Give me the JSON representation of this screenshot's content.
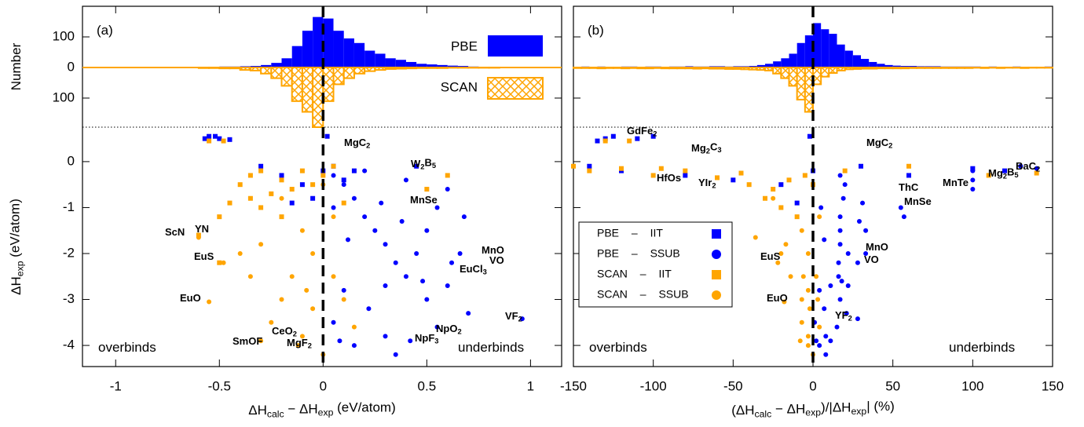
{
  "chart_data": [
    {
      "type": "histogram",
      "ylabel": [
        "Number"
      ],
      "sharex": 1,
      "vline": 0,
      "legend": "upper right",
      "bins": [
        -0.6,
        -0.55,
        -0.5,
        -0.45,
        -0.4,
        -0.35,
        -0.3,
        -0.25,
        -0.2,
        -0.15,
        -0.1,
        -0.05,
        0,
        0.05,
        0.1,
        0.15,
        0.2,
        0.25,
        0.3,
        0.35,
        0.4,
        0.45,
        0.5,
        0.55,
        0.6,
        0.65,
        0.7,
        0.75,
        0.8,
        0.85,
        0.9
      ],
      "series": [
        {
          "name": "PBE",
          "color": "#0000ff",
          "hatch": false,
          "values": [
            2,
            2,
            3,
            3,
            4,
            5,
            8,
            15,
            30,
            70,
            120,
            165,
            160,
            120,
            95,
            80,
            55,
            45,
            30,
            25,
            18,
            12,
            10,
            8,
            6,
            5,
            3,
            2,
            2,
            1
          ]
        },
        {
          "name": "SCAN",
          "color": "#ffa500",
          "hatch": true,
          "values": [
            -2,
            -2,
            -3,
            -3,
            -8,
            -10,
            -20,
            -35,
            -60,
            -110,
            -145,
            -195,
            -110,
            -55,
            -35,
            -20,
            -12,
            -8,
            -5,
            -4,
            -3,
            -2,
            -2,
            -2,
            -1,
            -1,
            -1,
            -1,
            -1,
            0
          ]
        }
      ],
      "ylim": [
        -195,
        200
      ],
      "yticks": [
        100,
        0,
        {
          "value": -100,
          "label": "100"
        }
      ],
      "annotations": [
        [
          "(a)"
        ]
      ]
    },
    {
      "type": "scatter",
      "xlabel": [
        "ΔH",
        "calc",
        " − ΔH",
        "exp",
        " (eV/atom)"
      ],
      "ylabel": [
        "ΔH",
        "exp",
        " (eV/atom)"
      ],
      "vline": 0,
      "xlim": [
        -1.16,
        1.15
      ],
      "xticks": [
        -1,
        -0.5,
        0,
        0.5,
        1
      ],
      "ylim": [
        -4.46,
        0.75
      ],
      "yticks": [
        0,
        -1,
        -2,
        -3,
        -4
      ],
      "series": [
        {
          "name": "PBE – IIT",
          "color": "#0000ff",
          "marker": "square",
          "x": [
            -0.57,
            -0.55,
            -0.52,
            -0.5,
            -0.45,
            -0.3,
            -0.2,
            -0.1,
            0.0,
            0.05,
            0.1,
            -0.05,
            0.15,
            0.45,
            -0.15,
            0.02
          ],
          "values": [
            0.5,
            0.55,
            0.55,
            0.5,
            0.48,
            -0.1,
            -0.3,
            -0.5,
            -0.2,
            -0.1,
            -0.4,
            -0.8,
            -0.2,
            -0.1,
            -0.9,
            0.55
          ]
        },
        {
          "name": "PBE – SSUB",
          "color": "#0000ff",
          "marker": "circle",
          "x": [
            0.05,
            0.1,
            0.15,
            0.2,
            0.25,
            0.3,
            0.35,
            0.4,
            0.3,
            0.45,
            0.5,
            0.55,
            0.6,
            0.68,
            0.22,
            0.3,
            0.35,
            0.5,
            0.42,
            0.7,
            0.96,
            0.66,
            0.62,
            0.55,
            0.1,
            0.05,
            0.2,
            0.12,
            0.38,
            0.28,
            0.48,
            0.05,
            0.08,
            0.15,
            0.6,
            0.4
          ],
          "values": [
            -0.3,
            -0.5,
            -0.8,
            -1.2,
            -1.5,
            -1.8,
            -2.2,
            -2.5,
            -2.7,
            -2.0,
            -1.5,
            -1.0,
            -0.6,
            -1.2,
            -3.2,
            -3.8,
            -4.2,
            -3.0,
            -3.9,
            -3.3,
            -3.42,
            -2.0,
            -2.2,
            -3.6,
            -2.8,
            -3.5,
            -0.2,
            -1.7,
            -1.3,
            -0.9,
            -2.6,
            -1.0,
            -3.9,
            -4.0,
            -2.7,
            -0.4
          ]
        },
        {
          "name": "SCAN – IIT",
          "color": "#ffa500",
          "marker": "square",
          "x": [
            -0.6,
            -0.5,
            -0.45,
            -0.4,
            -0.35,
            -0.3,
            -0.25,
            -0.2,
            -0.15,
            -0.1,
            -0.05,
            0.0,
            0.05,
            -0.3,
            -0.55,
            -0.48,
            -0.5,
            0.5,
            0.6,
            -0.35,
            0.1,
            -0.2
          ],
          "values": [
            -1.6,
            -1.2,
            -0.9,
            -0.5,
            -0.3,
            -1.0,
            -0.7,
            -0.4,
            -0.6,
            -0.2,
            -0.5,
            -0.3,
            -0.1,
            -0.2,
            0.45,
            0.45,
            -2.2,
            -0.6,
            -0.3,
            -0.8,
            -0.9,
            -1.2
          ]
        },
        {
          "name": "SCAN – SSUB",
          "color": "#ffa500",
          "marker": "circle",
          "x": [
            -0.1,
            -0.05,
            -0.15,
            -0.2,
            -0.25,
            -0.3,
            -0.05,
            0.0,
            -0.1,
            0.05,
            0.1,
            -0.3,
            -0.4,
            -0.35,
            -0.55,
            -0.48,
            -0.6,
            0.05,
            -0.2,
            0.0,
            -0.12,
            0.15,
            -0.08
          ],
          "values": [
            -1.5,
            -2.0,
            -2.5,
            -3.0,
            -3.5,
            -3.9,
            -3.2,
            -4.2,
            -3.8,
            -2.5,
            -3.0,
            -1.8,
            -2.0,
            -2.5,
            -3.05,
            -2.2,
            -1.65,
            -1.2,
            -0.8,
            -0.5,
            -4.0,
            -3.6,
            -2.8
          ]
        }
      ],
      "annotations": [
        [
          "MgC",
          "2"
        ],
        [
          "W",
          "2",
          "B",
          "5"
        ],
        [
          "MnSe"
        ],
        [
          "ScN"
        ],
        [
          "YN"
        ],
        [
          "EuS"
        ],
        [
          "MnO"
        ],
        [
          "VO"
        ],
        [
          "EuCl",
          "3"
        ],
        [
          "EuO"
        ],
        [
          "VF",
          "2"
        ],
        [
          "NpO",
          "2"
        ],
        [
          "NpF",
          "3"
        ],
        [
          "CeO",
          "2"
        ],
        [
          "SmOF"
        ],
        [
          "MgF",
          "2"
        ],
        [
          "overbinds"
        ],
        [
          "underbinds"
        ]
      ]
    },
    {
      "type": "histogram",
      "sharex": 3,
      "sharey": 0,
      "vline": 0,
      "bins": [
        -150,
        -145,
        -140,
        -135,
        -130,
        -125,
        -120,
        -115,
        -110,
        -105,
        -100,
        -95,
        -90,
        -85,
        -80,
        -75,
        -70,
        -65,
        -60,
        -55,
        -50,
        -45,
        -40,
        -35,
        -30,
        -25,
        -20,
        -15,
        -10,
        -5,
        0,
        5,
        10,
        15,
        20,
        25,
        30,
        35,
        40,
        45,
        50,
        55,
        60,
        65,
        70,
        75,
        80,
        85,
        90,
        95,
        100,
        105,
        110,
        115,
        120,
        125,
        130,
        135,
        140,
        145,
        150
      ],
      "series": [
        {
          "name": "PBE",
          "color": "#0000ff",
          "hatch": false,
          "values": [
            2,
            3,
            2,
            3,
            2,
            2,
            3,
            3,
            2,
            3,
            3,
            2,
            3,
            3,
            4,
            3,
            3,
            4,
            4,
            3,
            4,
            4,
            5,
            8,
            12,
            20,
            30,
            45,
            80,
            105,
            145,
            125,
            110,
            75,
            55,
            40,
            28,
            18,
            12,
            8,
            6,
            5,
            5,
            4,
            4,
            4,
            3,
            3,
            3,
            3,
            3,
            2,
            3,
            2,
            2,
            3,
            2,
            2,
            2,
            3
          ]
        },
        {
          "name": "SCAN",
          "color": "#ffa500",
          "hatch": true,
          "values": [
            -2,
            -2,
            -2,
            -3,
            -2,
            -2,
            -3,
            -2,
            -3,
            -3,
            -2,
            -3,
            -3,
            -3,
            -3,
            -4,
            -3,
            -4,
            -4,
            -5,
            -5,
            -6,
            -7,
            -8,
            -10,
            -20,
            -35,
            -60,
            -105,
            -145,
            -55,
            -30,
            -18,
            -10,
            -6,
            -5,
            -4,
            -4,
            -3,
            -3,
            -3,
            -3,
            -2,
            -2,
            -2,
            -2,
            -2,
            -2,
            -2,
            -2,
            -1,
            -2,
            -1,
            -2,
            -1,
            -1,
            -2,
            -1,
            -1,
            -1
          ]
        }
      ],
      "ylim": [
        -195,
        200
      ],
      "annotations": [
        [
          "(b)"
        ]
      ]
    },
    {
      "type": "scatter",
      "xlabel": [
        "(ΔH",
        "calc",
        " − ΔH",
        "exp",
        ")/|ΔH",
        "exp",
        "| (%)"
      ],
      "sharey": 1,
      "vline": 0,
      "legend": "center left",
      "xlim": [
        -150,
        150
      ],
      "xticks": [
        -150,
        -100,
        -50,
        0,
        50,
        100,
        150
      ],
      "ylim": [
        -4.46,
        0.75
      ],
      "series": [
        {
          "name": "PBE – IIT",
          "color": "#0000ff",
          "marker": "square",
          "x": [
            -135,
            -130,
            -125,
            -110,
            -100,
            -140,
            -120,
            -80,
            -50,
            -20,
            0,
            30,
            60,
            100,
            120,
            -10,
            -2
          ],
          "values": [
            0.45,
            0.5,
            0.55,
            0.5,
            0.55,
            -0.1,
            -0.2,
            -0.3,
            -0.4,
            -0.5,
            -0.2,
            -0.1,
            -0.3,
            -0.15,
            -0.2,
            -0.9,
            0.55
          ]
        },
        {
          "name": "PBE – SSUB",
          "color": "#0000ff",
          "marker": "circle",
          "x": [
            17,
            20,
            19,
            17,
            17,
            17,
            16,
            16,
            11,
            22,
            33,
            55,
            100,
            57,
            7,
            8,
            8,
            17,
            11,
            21,
            28,
            33,
            28,
            15,
            4,
            1,
            100,
            7,
            29,
            31,
            18,
            5,
            2,
            4,
            22,
            100,
            130,
            140
          ],
          "values": [
            -0.3,
            -0.5,
            -0.8,
            -1.2,
            -1.5,
            -1.8,
            -2.2,
            -2.5,
            -2.7,
            -2.0,
            -1.5,
            -1.0,
            -0.6,
            -1.2,
            -3.2,
            -3.8,
            -4.2,
            -3.0,
            -3.9,
            -3.3,
            -3.42,
            -2.0,
            -2.2,
            -3.6,
            -2.8,
            -3.5,
            -0.2,
            -1.7,
            -1.3,
            -0.9,
            -2.6,
            -1.0,
            -3.9,
            -4.0,
            -2.7,
            -0.4,
            -0.1,
            -0.15
          ]
        },
        {
          "name": "SCAN – IIT",
          "color": "#ffa500",
          "marker": "square",
          "x": [
            -150,
            -140,
            -120,
            -100,
            -80,
            -60,
            -40,
            -30,
            -25,
            -20,
            -15,
            -10,
            -5,
            0,
            20,
            60,
            110,
            140,
            -130,
            -115,
            -95,
            -45
          ],
          "values": [
            -0.1,
            -0.2,
            -0.15,
            -0.3,
            -0.2,
            -0.35,
            -0.5,
            -0.8,
            -0.6,
            -1.0,
            -0.4,
            -1.2,
            -0.3,
            -0.5,
            -0.2,
            -0.1,
            -0.3,
            -0.25,
            0.45,
            0.45,
            -0.15,
            -0.25
          ]
        },
        {
          "name": "SCAN – SSUB",
          "color": "#ffa500",
          "marker": "circle",
          "x": [
            -7,
            -3,
            -6,
            -7,
            -7,
            -8,
            -2,
            0,
            -3,
            2,
            3,
            -17,
            -20,
            -14,
            -18,
            -22,
            -36,
            4,
            -25,
            0,
            -3,
            4,
            -3
          ],
          "values": [
            -1.5,
            -2.0,
            -2.5,
            -3.0,
            -3.5,
            -3.9,
            -3.2,
            -4.2,
            -3.8,
            -2.5,
            -3.0,
            -1.8,
            -2.0,
            -2.5,
            -3.05,
            -2.2,
            -1.65,
            -1.2,
            -0.8,
            -0.5,
            -4.0,
            -3.6,
            -2.8
          ]
        }
      ],
      "annotations": [
        [
          "GdFe",
          "2"
        ],
        [
          "Mg",
          "2",
          "C",
          "3"
        ],
        [
          "MgC",
          "2"
        ],
        [
          "BaC",
          "2"
        ],
        [
          "Mg",
          "2",
          "B",
          "5"
        ],
        [
          "HfOs"
        ],
        [
          "YIr",
          "2"
        ],
        [
          "ThC"
        ],
        [
          "MnTe"
        ],
        [
          "MnSe"
        ],
        [
          "MnO"
        ],
        [
          "VO"
        ],
        [
          "EuS"
        ],
        [
          "EuO"
        ],
        [
          "YF",
          "2"
        ],
        [
          "overbinds"
        ],
        [
          "underbinds"
        ]
      ]
    }
  ]
}
